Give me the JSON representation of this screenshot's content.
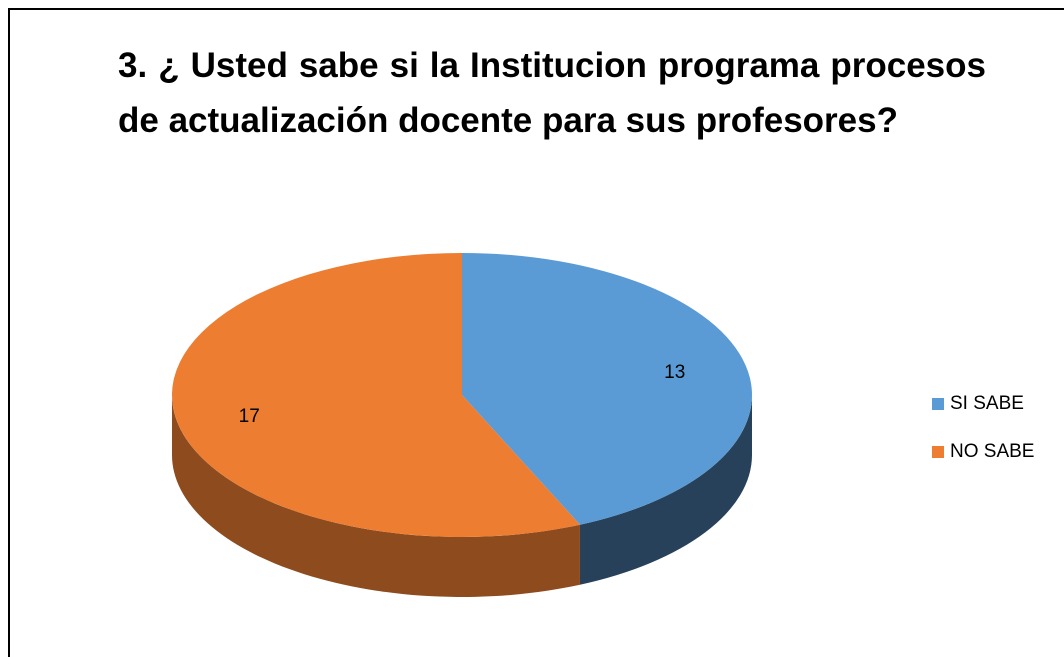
{
  "chart_data": {
    "type": "pie",
    "title": "3. ¿ Usted sabe si la Institucion programa procesos de actualización docente para sus profesores?",
    "categories": [
      "SI SABE",
      "NO SABE"
    ],
    "values": [
      13,
      17
    ],
    "colors": [
      "#5b9bd5",
      "#ed7d31"
    ],
    "legend": "right"
  }
}
